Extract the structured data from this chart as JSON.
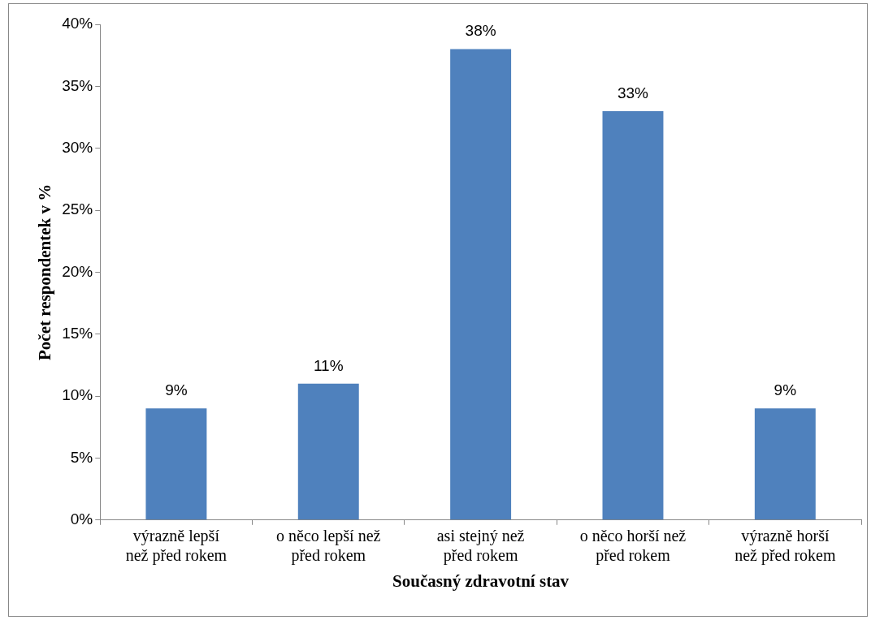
{
  "chart_data": {
    "type": "bar",
    "xlabel": "Současný zdravotní stav",
    "ylabel": "Počet respondentek v %",
    "categories": [
      "výrazně lepší než před rokem",
      "o něco lepší než před rokem",
      "asi stejný než před rokem",
      "o něco horší než před rokem",
      "výrazně horší než před rokem"
    ],
    "values": [
      9,
      11,
      38,
      33,
      9
    ],
    "value_labels": [
      "9%",
      "11%",
      "38%",
      "33%",
      "9%"
    ],
    "color": "#4f81bd",
    "ylim": [
      0,
      40
    ],
    "yticks": [
      {
        "value": 0,
        "label": "0%"
      },
      {
        "value": 5,
        "label": "5%"
      },
      {
        "value": 10,
        "label": "10%"
      },
      {
        "value": 15,
        "label": "15%"
      },
      {
        "value": 20,
        "label": "20%"
      },
      {
        "value": 25,
        "label": "25%"
      },
      {
        "value": 30,
        "label": "30%"
      },
      {
        "value": 35,
        "label": "35%"
      },
      {
        "value": 40,
        "label": "40%"
      }
    ],
    "grid": false,
    "legend": false
  }
}
